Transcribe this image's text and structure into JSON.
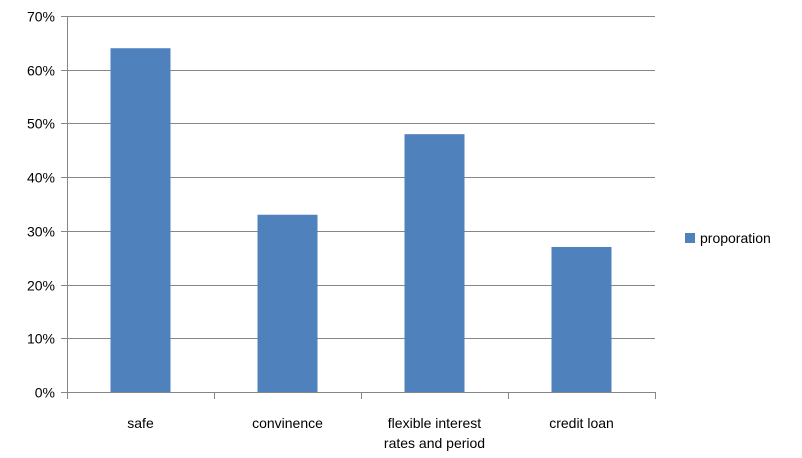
{
  "chart_data": {
    "type": "bar",
    "categories": [
      "safe",
      "convinence",
      "flexible interest rates and period",
      "credit loan"
    ],
    "category_lines": [
      [
        "safe"
      ],
      [
        "convinence"
      ],
      [
        "flexible interest",
        "rates and period"
      ],
      [
        "credit loan"
      ]
    ],
    "series": [
      {
        "name": "proporation",
        "values": [
          0.64,
          0.33,
          0.48,
          0.27
        ],
        "color": "#4F81BD"
      }
    ],
    "ylim": [
      0,
      0.7
    ],
    "yticks": [
      0,
      0.1,
      0.2,
      0.3,
      0.4,
      0.5,
      0.6,
      0.7
    ],
    "ytick_labels": [
      "0%",
      "10%",
      "20%",
      "30%",
      "40%",
      "50%",
      "60%",
      "70%"
    ],
    "title": "",
    "xlabel": "",
    "ylabel": "",
    "grid": true,
    "legend": "right"
  }
}
